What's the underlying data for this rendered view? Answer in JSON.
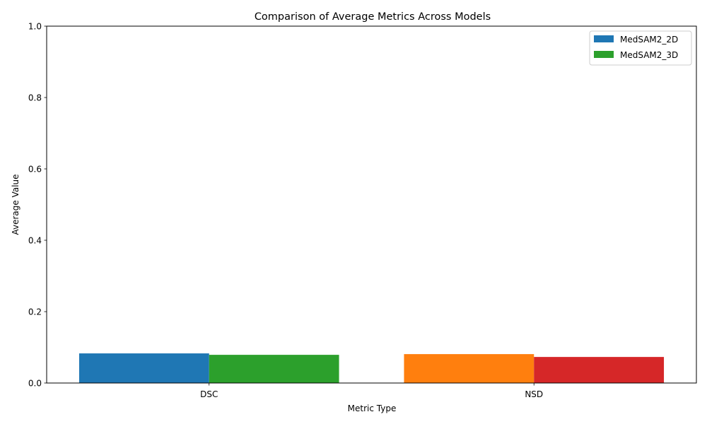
{
  "chart_data": {
    "type": "bar",
    "title": "Comparison of Average Metrics Across Models",
    "xlabel": "Metric Type",
    "ylabel": "Average Value",
    "categories": [
      "DSC",
      "NSD"
    ],
    "ylim": [
      0,
      1.0
    ],
    "yticks": [
      "0.0",
      "0.2",
      "0.4",
      "0.6",
      "0.8",
      "1.0"
    ],
    "grid": false,
    "legend_position": "top-right",
    "series": [
      {
        "name": "MedSAM2_2D",
        "values": [
          0.083,
          0.081
        ],
        "colors": [
          "#1f77b4",
          "#ff7f0e"
        ]
      },
      {
        "name": "MedSAM2_3D",
        "values": [
          0.079,
          0.073
        ],
        "colors": [
          "#2ca02c",
          "#d62728"
        ]
      }
    ]
  }
}
